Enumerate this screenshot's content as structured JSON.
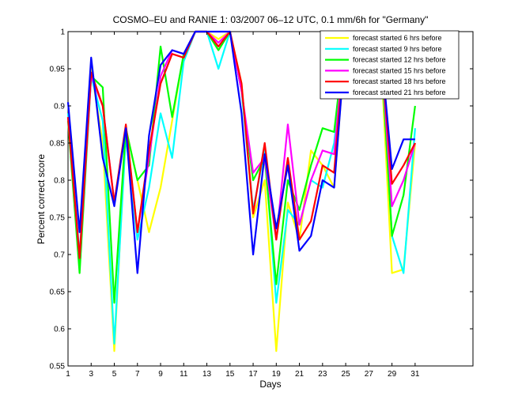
{
  "chart_data": {
    "type": "line",
    "title": "COSMO–EU and RANIE 1: 03/2007 06–12 UTC, 0.1 mm/6h for \"Germany\"",
    "xlabel": "Days",
    "ylabel": "Percent correct score",
    "xlim": [
      1,
      36
    ],
    "ylim": [
      0.55,
      1
    ],
    "xticks": [
      1,
      3,
      5,
      7,
      9,
      11,
      13,
      15,
      17,
      19,
      21,
      23,
      25,
      27,
      29,
      31
    ],
    "yticks": [
      0.55,
      0.6,
      0.65,
      0.7,
      0.75,
      0.8,
      0.85,
      0.9,
      0.95,
      1
    ],
    "ytick_labels": [
      "0.55",
      "0.6",
      "0.65",
      "0.7",
      "0.75",
      "0.8",
      "0.85",
      "0.9",
      "0.95",
      "1"
    ],
    "grid": false,
    "legend_position": "top-right",
    "x": [
      1,
      2,
      3,
      4,
      5,
      6,
      7,
      8,
      9,
      10,
      11,
      12,
      13,
      14,
      15,
      16,
      17,
      18,
      19,
      20,
      21,
      22,
      23,
      24,
      25,
      26,
      27,
      28,
      29,
      30,
      31
    ],
    "series": [
      {
        "name": "forecast started 6 hrs before",
        "color": "#ffff00",
        "values": [
          0.89,
          0.69,
          0.95,
          0.85,
          0.57,
          0.87,
          0.8,
          0.73,
          0.79,
          0.88,
          0.97,
          1.0,
          1.0,
          0.99,
          1.0,
          0.93,
          0.75,
          0.8,
          0.57,
          0.77,
          0.72,
          0.84,
          0.82,
          0.79,
          0.99,
          1.0,
          1.0,
          0.98,
          0.675,
          0.68,
          0.85
        ]
      },
      {
        "name": "forecast started 9 hrs before",
        "color": "#00ffff",
        "values": [
          0.89,
          0.7,
          0.94,
          0.88,
          0.58,
          0.86,
          0.72,
          0.79,
          0.89,
          0.83,
          0.96,
          1.0,
          1.0,
          0.95,
          1.0,
          0.92,
          0.76,
          0.84,
          0.635,
          0.76,
          0.74,
          0.8,
          0.79,
          0.85,
          0.99,
          1.0,
          1.0,
          0.99,
          0.725,
          0.675,
          0.87
        ]
      },
      {
        "name": "forecast started 12 hrs before",
        "color": "#00ff00",
        "values": [
          0.88,
          0.675,
          0.94,
          0.925,
          0.635,
          0.87,
          0.8,
          0.82,
          0.98,
          0.885,
          0.97,
          1.0,
          1.0,
          0.975,
          1.0,
          0.92,
          0.8,
          0.83,
          0.66,
          0.8,
          0.76,
          0.82,
          0.87,
          0.865,
          1.0,
          1.0,
          1.0,
          0.99,
          0.725,
          0.78,
          0.9
        ]
      },
      {
        "name": "forecast started 15 hrs before",
        "color": "#ff00ff",
        "values": [
          0.885,
          0.695,
          0.94,
          0.9,
          0.77,
          0.87,
          0.73,
          0.83,
          0.94,
          0.975,
          0.97,
          1.0,
          1.0,
          0.985,
          1.0,
          0.92,
          0.81,
          0.83,
          0.72,
          0.875,
          0.74,
          0.8,
          0.84,
          0.835,
          1.0,
          1.0,
          1.0,
          0.99,
          0.765,
          0.8,
          0.85
        ]
      },
      {
        "name": "forecast started 18 hrs before",
        "color": "#ff0000",
        "values": [
          0.885,
          0.695,
          0.945,
          0.9,
          0.77,
          0.875,
          0.73,
          0.84,
          0.93,
          0.97,
          0.965,
          1.0,
          1.0,
          0.98,
          1.0,
          0.93,
          0.755,
          0.85,
          0.72,
          0.83,
          0.72,
          0.745,
          0.82,
          0.81,
          1.0,
          1.0,
          1.0,
          0.985,
          0.795,
          0.82,
          0.85
        ]
      },
      {
        "name": "forecast started 21 hrs before",
        "color": "#0000ff",
        "values": [
          0.905,
          0.73,
          0.965,
          0.83,
          0.765,
          0.87,
          0.675,
          0.86,
          0.955,
          0.975,
          0.97,
          1.0,
          1.0,
          1.0,
          1.0,
          0.89,
          0.7,
          0.835,
          0.735,
          0.82,
          0.705,
          0.725,
          0.8,
          0.79,
          0.99,
          1.0,
          1.0,
          0.985,
          0.815,
          0.855,
          0.855
        ]
      }
    ]
  }
}
